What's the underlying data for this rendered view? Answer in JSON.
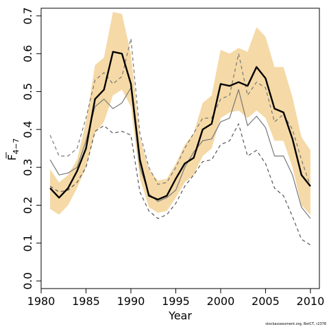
{
  "chart_data": {
    "type": "line",
    "xlabel": "Year",
    "ylabel_main": "F",
    "ylabel_sub": "4−7",
    "xlim": [
      1980,
      2011
    ],
    "ylim": [
      -0.02,
      0.72
    ],
    "x_ticks": [
      1980,
      1985,
      1990,
      1995,
      2000,
      2005,
      2010
    ],
    "y_ticks": [
      0.0,
      0.1,
      0.2,
      0.3,
      0.4,
      0.5,
      0.6,
      0.7
    ],
    "x": [
      1981,
      1982,
      1983,
      1984,
      1985,
      1986,
      1987,
      1988,
      1989,
      1990,
      1991,
      1992,
      1993,
      1994,
      1995,
      1996,
      1997,
      1998,
      1999,
      2000,
      2001,
      2002,
      2003,
      2004,
      2005,
      2006,
      2007,
      2008,
      2009,
      2010
    ],
    "band": {
      "color": "#f5d9a6",
      "upper": [
        0.295,
        0.26,
        0.28,
        0.32,
        0.42,
        0.57,
        0.59,
        0.71,
        0.705,
        0.6,
        0.38,
        0.295,
        0.265,
        0.27,
        0.31,
        0.36,
        0.39,
        0.47,
        0.49,
        0.61,
        0.6,
        0.615,
        0.605,
        0.67,
        0.645,
        0.565,
        0.565,
        0.485,
        0.38,
        0.345
      ],
      "lower": [
        0.19,
        0.175,
        0.2,
        0.245,
        0.3,
        0.39,
        0.42,
        0.49,
        0.505,
        0.46,
        0.27,
        0.195,
        0.18,
        0.185,
        0.22,
        0.26,
        0.28,
        0.33,
        0.35,
        0.43,
        0.445,
        0.45,
        0.43,
        0.45,
        0.43,
        0.37,
        0.37,
        0.3,
        0.2,
        0.175
      ]
    },
    "series": [
      {
        "style": "solid-bold",
        "color": "#000000",
        "values": [
          0.245,
          0.22,
          0.245,
          0.29,
          0.35,
          0.48,
          0.505,
          0.605,
          0.6,
          0.52,
          0.32,
          0.225,
          0.215,
          0.225,
          0.27,
          0.31,
          0.325,
          0.4,
          0.415,
          0.52,
          0.515,
          0.525,
          0.515,
          0.565,
          0.535,
          0.455,
          0.445,
          0.375,
          0.28,
          0.25
        ]
      },
      {
        "style": "solid-thin",
        "color": "#777777",
        "values": [
          0.32,
          0.28,
          0.285,
          0.3,
          0.37,
          0.46,
          0.48,
          0.455,
          0.47,
          0.51,
          0.3,
          0.23,
          0.21,
          0.22,
          0.24,
          0.3,
          0.34,
          0.37,
          0.375,
          0.42,
          0.43,
          0.505,
          0.41,
          0.435,
          0.405,
          0.33,
          0.33,
          0.28,
          0.195,
          0.165
        ]
      },
      {
        "style": "dashed-upper",
        "color": "#777777",
        "values": [
          0.385,
          0.33,
          0.33,
          0.35,
          0.43,
          0.53,
          0.55,
          0.52,
          0.54,
          0.64,
          0.39,
          0.3,
          0.255,
          0.26,
          0.3,
          0.35,
          0.39,
          0.43,
          0.43,
          0.48,
          0.49,
          0.6,
          0.49,
          0.525,
          0.51,
          0.42,
          0.44,
          0.4,
          0.32,
          0.25
        ]
      },
      {
        "style": "dashed-lower",
        "color": "#555555",
        "values": [
          0.25,
          0.235,
          0.24,
          0.26,
          0.3,
          0.395,
          0.41,
          0.39,
          0.395,
          0.385,
          0.235,
          0.185,
          0.165,
          0.175,
          0.205,
          0.25,
          0.28,
          0.315,
          0.32,
          0.36,
          0.37,
          0.415,
          0.33,
          0.345,
          0.31,
          0.245,
          0.225,
          0.17,
          0.11,
          0.095
        ]
      }
    ]
  },
  "credit": "stockassessment.org, BetCT, r2378"
}
